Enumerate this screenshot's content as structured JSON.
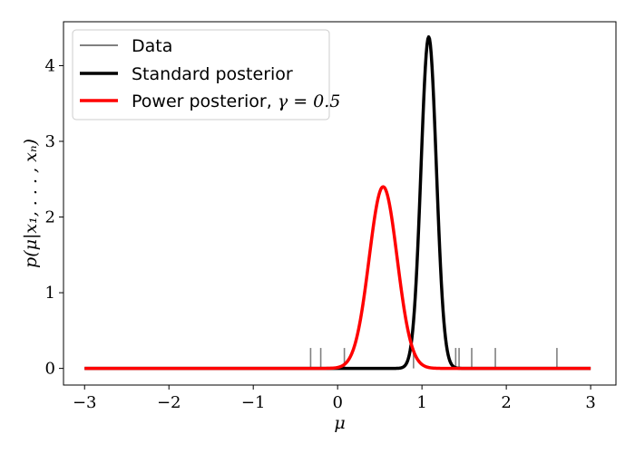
{
  "chart_data": {
    "type": "line",
    "title": "",
    "xlabel": "μ",
    "ylabel": "p(μ|x₁, . . . , xₙ)",
    "xlim": [
      -3.25,
      3.3
    ],
    "ylim": [
      -0.22,
      4.58
    ],
    "xticks": [
      -3,
      -2,
      -1,
      0,
      1,
      2,
      3
    ],
    "yticks": [
      0,
      1,
      2,
      3,
      4
    ],
    "xtick_labels": [
      "−3",
      "−2",
      "−1",
      "0",
      "1",
      "2",
      "3"
    ],
    "ytick_labels": [
      "0",
      "1",
      "2",
      "3",
      "4"
    ],
    "grid": false,
    "legend_position": "top-left",
    "series": [
      {
        "name": "Data",
        "kind": "rug",
        "color": "#808080",
        "x": [
          -0.32,
          -0.2,
          0.08,
          0.9,
          1.4,
          1.44,
          1.59,
          1.87,
          2.6
        ],
        "height": 0.27
      },
      {
        "name": "Standard posterior",
        "kind": "gaussian",
        "color": "#000000",
        "mean": 1.08,
        "peak": 4.38,
        "x_range": [
          -3,
          3
        ]
      },
      {
        "name": "Power posterior, γ = 0.5",
        "kind": "gaussian",
        "color": "#ff0000",
        "mean": 0.54,
        "peak": 2.4,
        "x_range": [
          -3,
          3
        ]
      }
    ]
  },
  "legend": {
    "items": [
      {
        "label": "Data",
        "color": "#808080"
      },
      {
        "label": "Standard posterior",
        "color": "#000000"
      },
      {
        "label_prefix": "Power posterior, ",
        "math": "γ = 0.5",
        "color": "#ff0000"
      }
    ]
  }
}
